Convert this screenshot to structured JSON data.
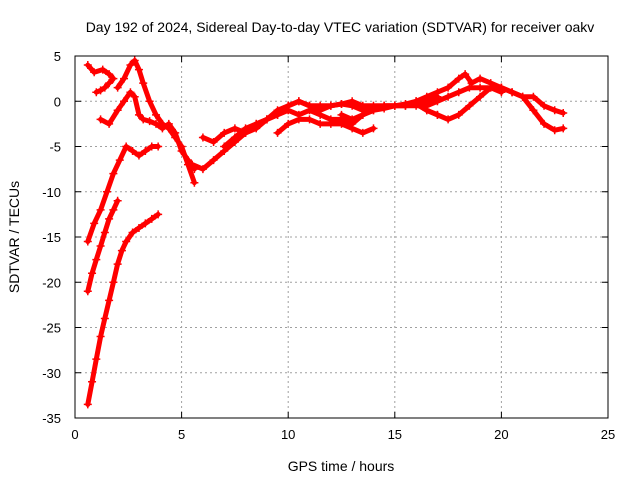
{
  "chart_data": {
    "type": "line",
    "title": "Day 192 of 2024, Sidereal Day-to-day VTEC variation (SDTVAR) for receiver oakv",
    "xlabel": "GPS time / hours",
    "ylabel": "SDTVAR / TECUs",
    "xlim": [
      0,
      25
    ],
    "ylim": [
      -35,
      5
    ],
    "xticks": [
      0,
      5,
      10,
      15,
      20,
      25
    ],
    "yticks": [
      5,
      0,
      -5,
      -10,
      -15,
      -20,
      -25,
      -30,
      -35
    ],
    "grid": true,
    "marker": "plus",
    "color": "#ff0000",
    "series": [
      {
        "name": "trace-1",
        "x": [
          0.6,
          0.9,
          1.3,
          1.6,
          1.8,
          1.6,
          1.4,
          1.2,
          1.0
        ],
        "y": [
          4.0,
          3.2,
          3.5,
          3.0,
          2.5,
          2.0,
          1.5,
          1.2,
          1.0
        ]
      },
      {
        "name": "trace-2",
        "x": [
          1.2,
          1.6,
          2.0,
          2.3,
          2.6,
          2.8,
          3.0,
          3.2,
          3.5,
          3.8,
          4.1,
          4.4,
          4.7,
          5.0,
          5.3,
          5.6
        ],
        "y": [
          -2.0,
          -2.5,
          -1.0,
          0.0,
          1.0,
          0.5,
          -1.5,
          -2.0,
          -2.2,
          -2.5,
          -3.0,
          -2.5,
          -3.5,
          -5.5,
          -6.5,
          -7.5
        ]
      },
      {
        "name": "trace-3",
        "x": [
          2.0,
          2.3,
          2.6,
          2.8,
          3.0,
          3.2,
          3.5,
          3.8,
          4.1,
          4.4,
          4.7,
          5.0,
          5.3,
          5.6
        ],
        "y": [
          1.5,
          2.5,
          4.0,
          4.5,
          3.5,
          2.0,
          0.0,
          -1.5,
          -2.5,
          -3.0,
          -4.0,
          -5.0,
          -7.0,
          -9.0
        ]
      },
      {
        "name": "trace-4",
        "x": [
          0.6,
          0.9,
          1.2,
          1.5,
          1.8,
          2.1,
          2.4,
          2.7,
          3.0,
          3.3,
          3.6,
          3.9
        ],
        "y": [
          -15.5,
          -13.5,
          -12.0,
          -10.0,
          -8.0,
          -6.5,
          -5.0,
          -5.5,
          -6.0,
          -5.5,
          -5.0,
          -5.0
        ]
      },
      {
        "name": "trace-5",
        "x": [
          0.6,
          0.8,
          1.0,
          1.2,
          1.4,
          1.6,
          1.8,
          2.0
        ],
        "y": [
          -21.0,
          -19.0,
          -17.5,
          -16.0,
          -14.5,
          -13.0,
          -12.0,
          -11.0
        ]
      },
      {
        "name": "trace-6",
        "x": [
          0.6,
          0.8,
          1.0,
          1.2,
          1.4,
          1.6,
          1.8,
          2.0,
          2.2,
          2.4,
          2.7,
          3.0,
          3.3,
          3.6,
          3.9
        ],
        "y": [
          -33.5,
          -31.0,
          -28.5,
          -26.0,
          -24.0,
          -22.0,
          -20.0,
          -18.0,
          -16.5,
          -15.5,
          -14.5,
          -14.0,
          -13.5,
          -13.0,
          -12.5
        ]
      },
      {
        "name": "trace-7",
        "x": [
          5.5,
          6.0,
          6.5,
          7.0,
          7.5,
          8.0,
          8.5,
          9.0,
          9.5,
          10.0,
          10.5,
          11.0,
          11.5,
          12.0,
          12.5,
          13.0,
          13.5,
          14.0,
          14.5,
          15.0,
          15.5,
          16.0,
          16.5,
          17.0
        ],
        "y": [
          -7.0,
          -7.5,
          -6.5,
          -5.5,
          -4.5,
          -3.5,
          -3.0,
          -2.0,
          -1.5,
          -0.5,
          0.0,
          -0.5,
          -0.5,
          -0.5,
          -0.3,
          -0.5,
          -1.0,
          -0.8,
          -0.5,
          -0.5,
          -0.3,
          0.0,
          0.0,
          0.5
        ]
      },
      {
        "name": "trace-8",
        "x": [
          6.0,
          6.5,
          7.0,
          7.5,
          8.0,
          8.5,
          9.0,
          9.5,
          10.0,
          10.5,
          11.0,
          11.5,
          12.0,
          12.5,
          13.0,
          13.5,
          14.0
        ],
        "y": [
          -4.0,
          -4.5,
          -3.5,
          -3.0,
          -3.5,
          -2.5,
          -2.0,
          -1.5,
          -1.0,
          -1.5,
          -1.0,
          -1.5,
          -2.0,
          -2.0,
          -2.5,
          -1.5,
          -1.0
        ]
      },
      {
        "name": "trace-9",
        "x": [
          7.0,
          7.5,
          8.0,
          8.5,
          9.0,
          9.5,
          10.0,
          10.5,
          11.0,
          11.5,
          12.0,
          12.5,
          13.0,
          13.5,
          14.0,
          14.5,
          15.0,
          15.5,
          16.0,
          16.5,
          17.0
        ],
        "y": [
          -5.0,
          -4.0,
          -3.0,
          -2.5,
          -2.0,
          -1.0,
          -0.5,
          0.0,
          -0.5,
          -1.0,
          -0.5,
          -0.3,
          0.0,
          -0.5,
          -0.5,
          -0.5,
          -0.5,
          -0.5,
          -0.3,
          -1.0,
          -1.5
        ]
      },
      {
        "name": "trace-10",
        "x": [
          9.5,
          10.0,
          10.5,
          11.0,
          11.5,
          12.0,
          12.5,
          13.0,
          13.5,
          14.0
        ],
        "y": [
          -3.5,
          -2.5,
          -2.0,
          -2.0,
          -2.5,
          -2.5,
          -2.5,
          -3.0,
          -3.5,
          -3.0
        ]
      },
      {
        "name": "trace-11",
        "x": [
          12.5,
          13.0,
          13.5,
          14.0,
          14.5,
          15.0,
          15.5,
          16.0,
          16.5,
          17.0,
          17.5,
          18.0,
          18.5,
          19.0,
          19.5,
          20.0,
          20.5,
          21.0,
          21.5,
          22.0,
          22.5,
          22.9
        ],
        "y": [
          -1.5,
          -2.0,
          -1.5,
          -1.0,
          -0.8,
          -0.5,
          -0.5,
          -0.5,
          -0.5,
          0.0,
          0.5,
          1.0,
          1.5,
          1.5,
          1.5,
          1.5,
          1.0,
          0.5,
          0.5,
          -0.5,
          -1.0,
          -1.3
        ]
      },
      {
        "name": "trace-12",
        "x": [
          16.0,
          16.5,
          17.0,
          17.5,
          18.0,
          18.3,
          18.6,
          19.0,
          19.5,
          20.0,
          20.5,
          21.0,
          21.5,
          22.0,
          22.5,
          22.9
        ],
        "y": [
          0.0,
          0.5,
          1.0,
          1.5,
          2.5,
          3.0,
          2.0,
          2.5,
          2.0,
          1.5,
          1.0,
          0.5,
          -1.0,
          -2.5,
          -3.2,
          -3.0
        ]
      },
      {
        "name": "trace-13",
        "x": [
          16.5,
          17.0,
          17.5,
          18.0,
          18.5,
          19.0,
          19.5,
          20.0
        ],
        "y": [
          -1.0,
          -1.5,
          -2.0,
          -1.5,
          -0.5,
          0.5,
          1.5,
          1.0
        ]
      }
    ]
  }
}
